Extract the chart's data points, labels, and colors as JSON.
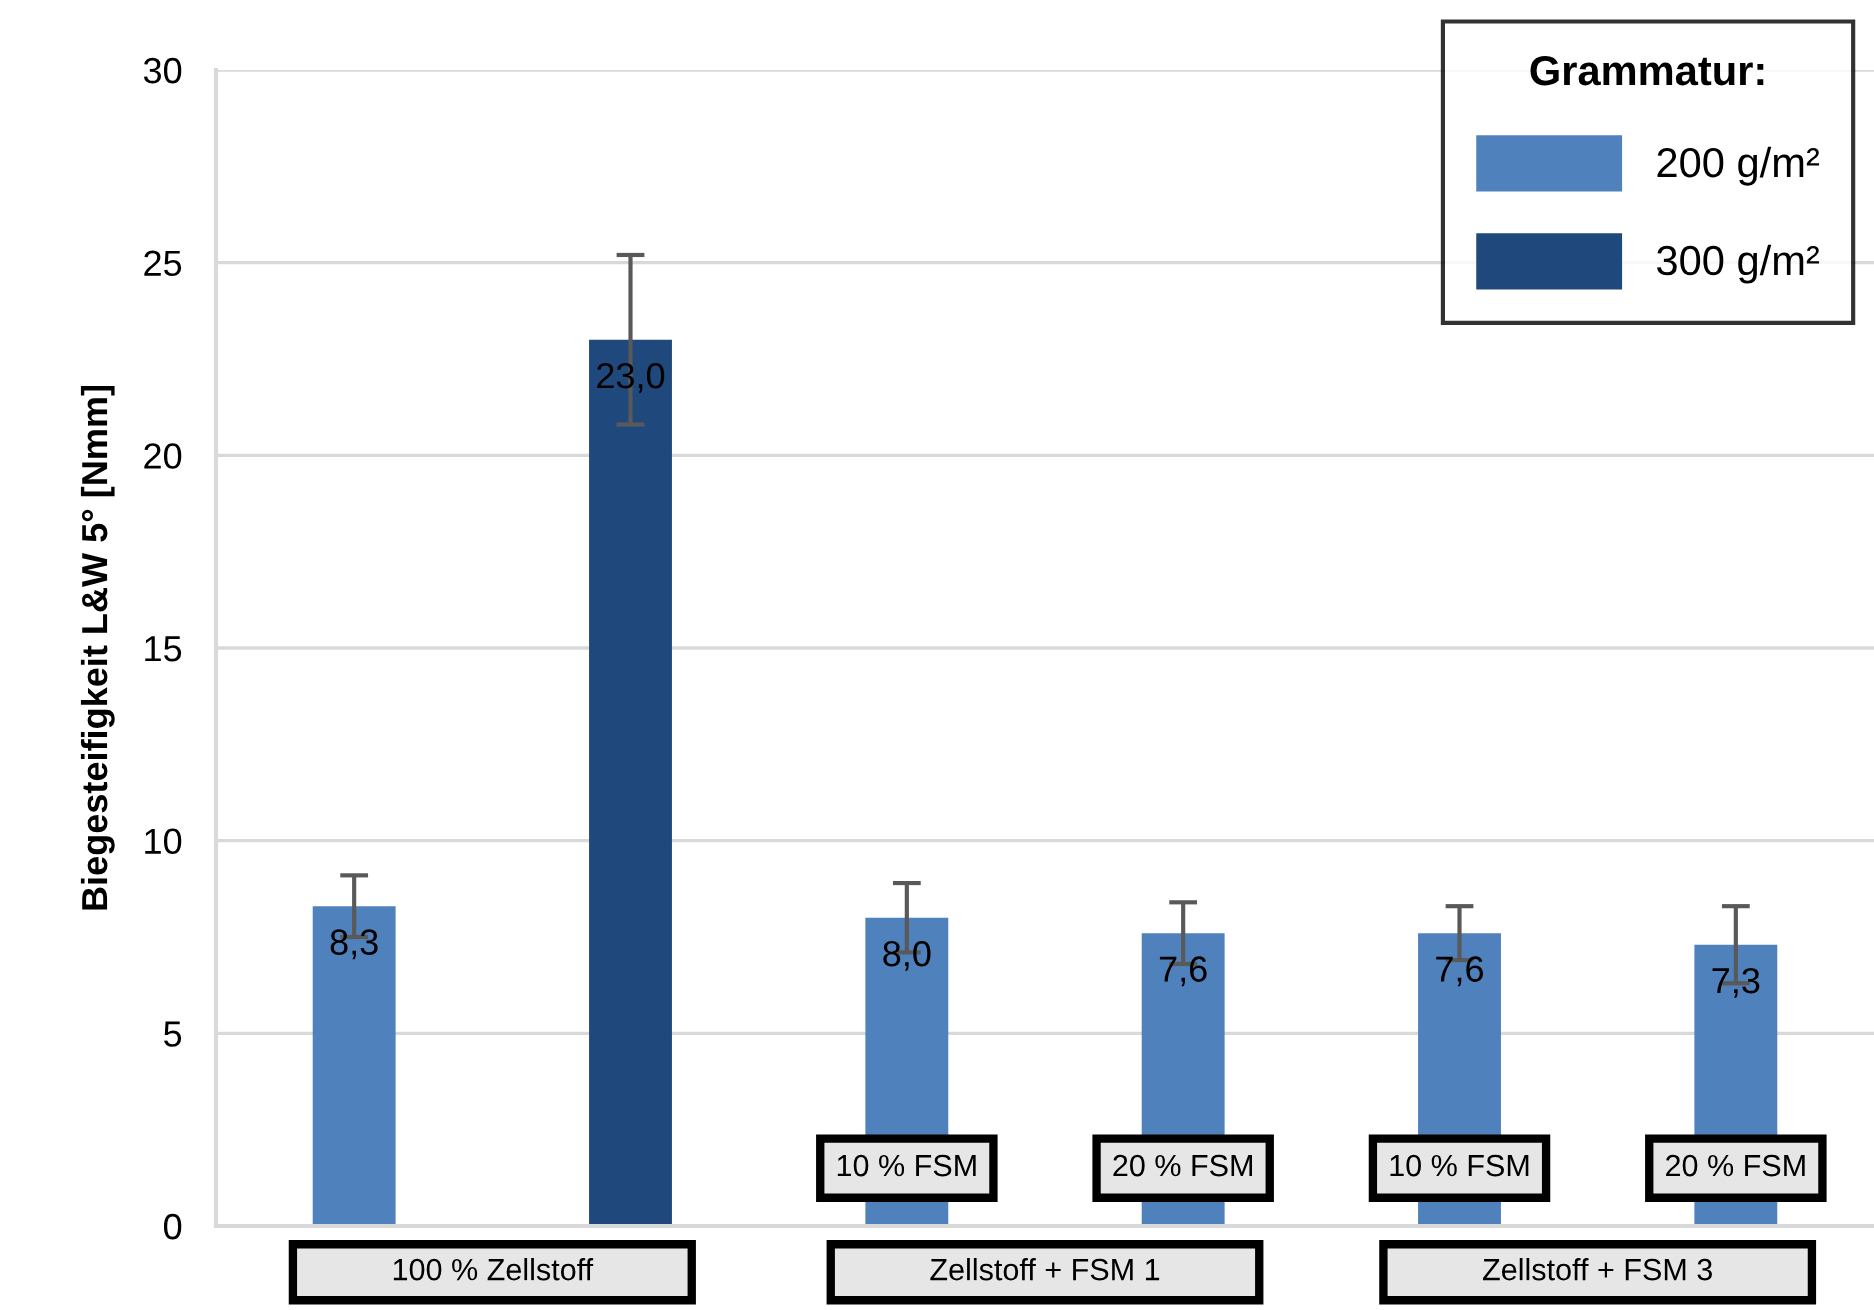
{
  "chart_data": {
    "type": "bar",
    "ylabel": "Biegesteifigkeit L&W 5° [Nmm]",
    "legend_title": "Grammatur:",
    "categories": [
      null,
      null,
      "10 % FSM",
      "20 % FSM",
      "10 % FSM",
      "20 % FSM"
    ],
    "series": [
      {
        "name": "200 g/m²",
        "color": "#4f81bd",
        "values": [
          8.3,
          null,
          8.0,
          7.6,
          7.6,
          7.3
        ],
        "value_labels": [
          "8,3",
          null,
          "8,0",
          "7,6",
          "7,6",
          "7,3"
        ],
        "errors": [
          0.8,
          null,
          0.9,
          0.8,
          0.7,
          1.0
        ]
      },
      {
        "name": "300 g/m²",
        "color": "#1f497d",
        "values": [
          null,
          23.0,
          null,
          null,
          null,
          null
        ],
        "value_labels": [
          null,
          "23,0",
          null,
          null,
          null,
          null
        ],
        "errors": [
          null,
          2.2,
          null,
          null,
          null,
          null
        ]
      }
    ],
    "annotations": [
      "100 % Zellstoff",
      "Zellstoff + FSM 1",
      "Zellstoff + FSM 3"
    ],
    "ylim": [
      0,
      30
    ],
    "yticks": [
      0,
      5,
      10,
      15,
      20,
      25,
      30
    ],
    "grid": "y",
    "legend": "top right"
  }
}
